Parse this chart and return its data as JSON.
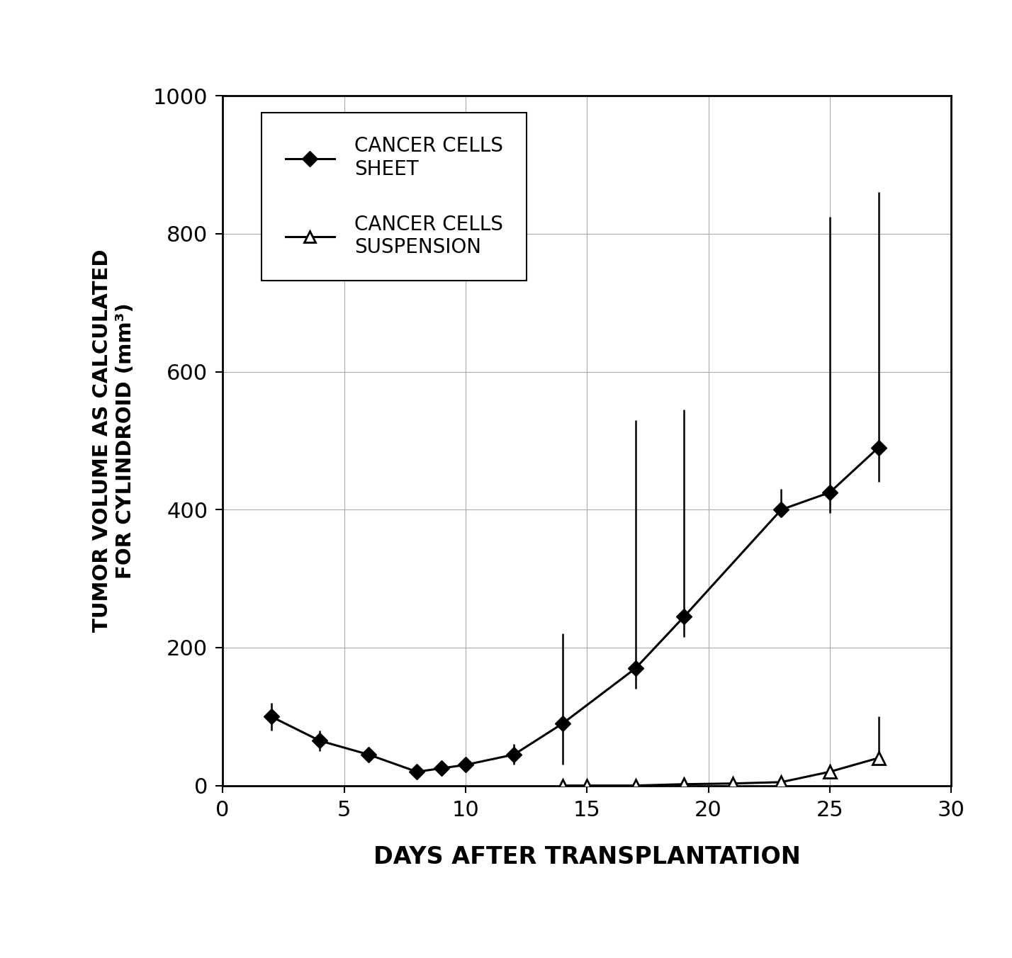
{
  "sheet_x": [
    2,
    4,
    6,
    8,
    9,
    10,
    12,
    14,
    17,
    19,
    23,
    25,
    27
  ],
  "sheet_y": [
    100,
    65,
    45,
    20,
    25,
    30,
    45,
    90,
    170,
    245,
    400,
    425,
    490
  ],
  "sheet_yerr_low": [
    20,
    15,
    10,
    5,
    5,
    10,
    15,
    60,
    30,
    30,
    10,
    30,
    50
  ],
  "sheet_yerr_high": [
    20,
    15,
    10,
    5,
    5,
    10,
    15,
    130,
    360,
    300,
    30,
    400,
    370
  ],
  "susp_x": [
    14,
    15,
    17,
    19,
    21,
    23,
    25,
    27
  ],
  "susp_y": [
    0,
    0,
    0,
    2,
    3,
    5,
    20,
    40
  ],
  "susp_yerr_low": [
    0,
    0,
    0,
    2,
    3,
    5,
    10,
    10
  ],
  "susp_yerr_high": [
    0,
    0,
    0,
    2,
    3,
    5,
    10,
    60
  ],
  "xlabel": "DAYS AFTER TRANSPLANTATION",
  "ylabel_line1": "TUMOR VOLUME AS CALCULATED",
  "ylabel_line2": "FOR CYLINDROID (mm³)",
  "xlim": [
    0,
    30
  ],
  "ylim": [
    0,
    1000
  ],
  "xticks": [
    0,
    5,
    10,
    15,
    20,
    25,
    30
  ],
  "yticks": [
    0,
    200,
    400,
    600,
    800,
    1000
  ],
  "legend_label_sheet": "CANCER CELLS\nSHEET",
  "legend_label_susp": "CANCER CELLS\nSUSPENSION",
  "line_color": "#000000",
  "background_color": "#ffffff",
  "grid_color": "#aaaaaa"
}
